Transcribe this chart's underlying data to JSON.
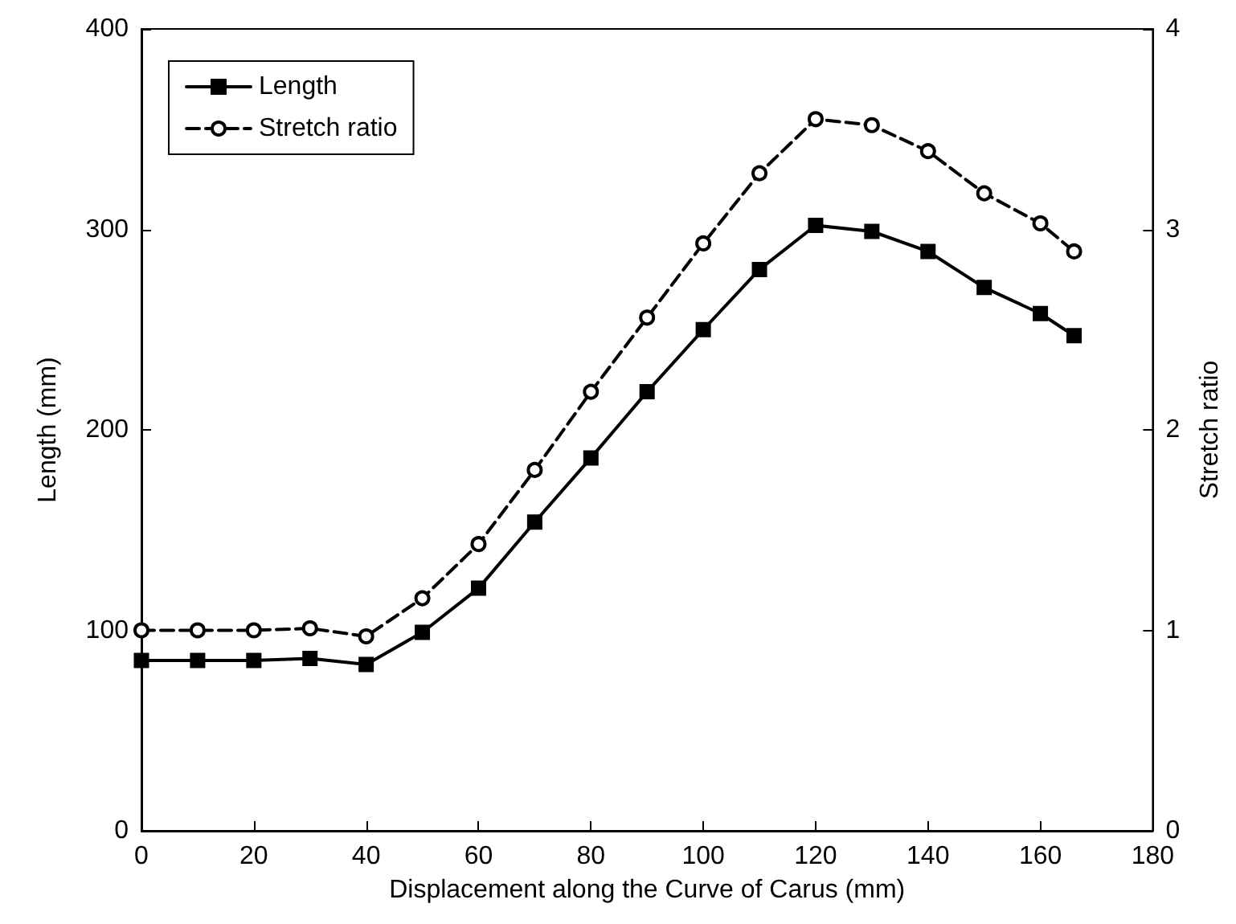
{
  "chart_data": {
    "type": "line",
    "xlabel": "Displacement along the Curve of Carus (mm)",
    "ylabel": "Length (mm)",
    "y2label": "Stretch ratio",
    "x": [
      0,
      10,
      20,
      30,
      40,
      50,
      60,
      70,
      80,
      90,
      100,
      110,
      120,
      130,
      140,
      150,
      160,
      166
    ],
    "series": [
      {
        "name": "Length",
        "color": "#000000",
        "marker": "square",
        "line_style": "solid",
        "values": [
          85,
          85,
          85,
          86,
          83,
          99,
          121,
          154,
          186,
          219,
          250,
          280,
          302,
          299,
          289,
          271,
          258,
          247
        ]
      },
      {
        "name": "Stretch ratio",
        "color": "#000000",
        "marker": "circle",
        "line_style": "dashed",
        "axis": "y2",
        "values": [
          1.0,
          1.0,
          1.0,
          1.01,
          0.97,
          1.16,
          1.43,
          1.8,
          2.19,
          2.56,
          2.93,
          3.28,
          3.55,
          3.52,
          3.39,
          3.18,
          3.03,
          2.89
        ]
      }
    ],
    "xlim": [
      0,
      180
    ],
    "xticks": [
      0,
      20,
      40,
      60,
      80,
      100,
      120,
      140,
      160,
      180
    ],
    "ylim": [
      0,
      400
    ],
    "yticks": [
      0,
      100,
      200,
      300,
      400
    ],
    "y2lim": [
      0,
      4
    ],
    "y2ticks": [
      0,
      1,
      2,
      3,
      4
    ],
    "legend": "top left",
    "grid": false
  }
}
